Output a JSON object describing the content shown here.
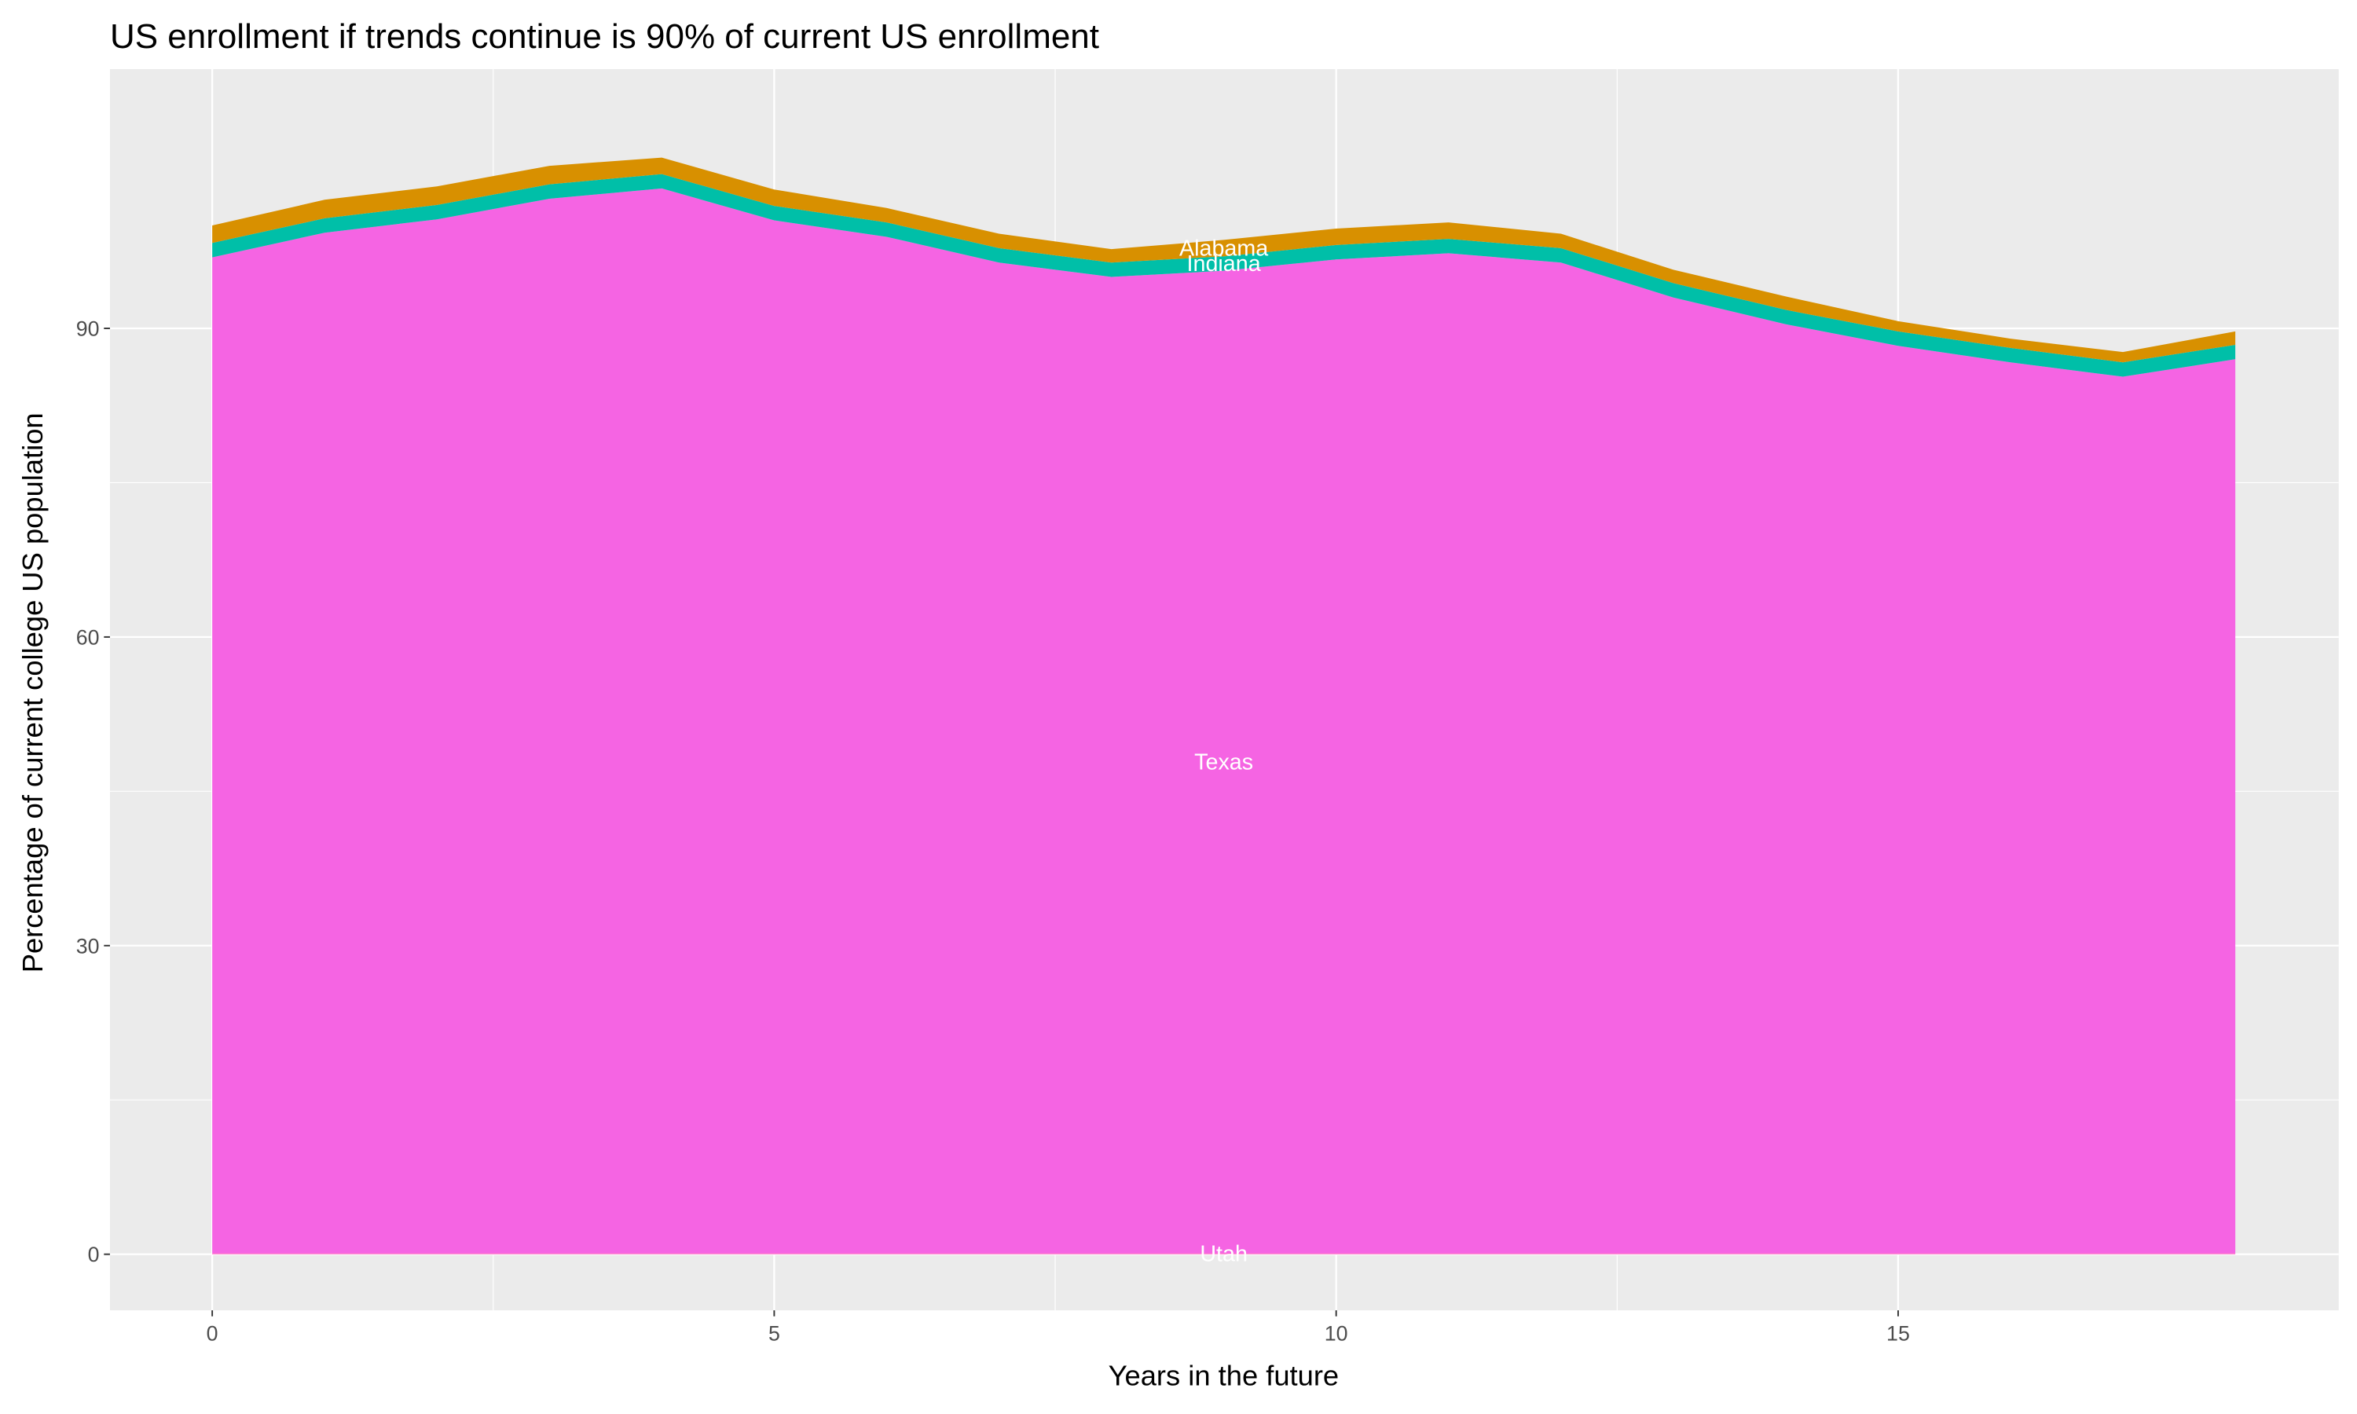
{
  "chart_data": {
    "type": "stacked-area",
    "title": "US enrollment if trends continue is 90% of current US enrollment",
    "x_label": "Years in the future",
    "y_label": "Percentage of current college US population",
    "x": [
      0,
      1,
      2,
      3,
      4,
      5,
      6,
      7,
      8,
      9,
      10,
      11,
      12,
      13,
      14,
      15,
      16,
      17,
      18
    ],
    "series": [
      {
        "name": "Utah",
        "color": "#FF61C3",
        "values": [
          0.1,
          0.1,
          0.1,
          0.1,
          0.1,
          0.1,
          0.1,
          0.1,
          0.1,
          0.1,
          0.1,
          0.1,
          0.1,
          0.1,
          0.1,
          0.1,
          0.1,
          0.1,
          0.1
        ]
      },
      {
        "name": "Texas",
        "color": "#F564E3",
        "values": [
          96.8,
          99.2,
          100.5,
          102.5,
          103.5,
          100.4,
          98.8,
          96.3,
          94.9,
          95.5,
          96.6,
          97.2,
          96.3,
          92.9,
          90.3,
          88.2,
          86.6,
          85.2,
          86.9
        ]
      },
      {
        "name": "Indiana",
        "color": "#00BFA8",
        "values": [
          1.4,
          1.4,
          1.4,
          1.4,
          1.4,
          1.4,
          1.4,
          1.4,
          1.4,
          1.4,
          1.4,
          1.4,
          1.4,
          1.4,
          1.4,
          1.4,
          1.4,
          1.4,
          1.4
        ]
      },
      {
        "name": "Alabama",
        "color": "#D89000",
        "values": [
          1.7,
          1.8,
          1.8,
          1.8,
          1.6,
          1.6,
          1.4,
          1.4,
          1.3,
          1.6,
          1.6,
          1.6,
          1.4,
          1.3,
          1.3,
          1.0,
          0.9,
          1.0,
          1.3
        ]
      }
    ],
    "label_x": 9,
    "xlim": [
      -0.91,
      18.92
    ],
    "ylim": [
      -5.45,
      115.2
    ],
    "xticks": [
      0,
      5,
      10,
      15
    ],
    "yticks": [
      0,
      30,
      60,
      90
    ],
    "grid": true
  }
}
